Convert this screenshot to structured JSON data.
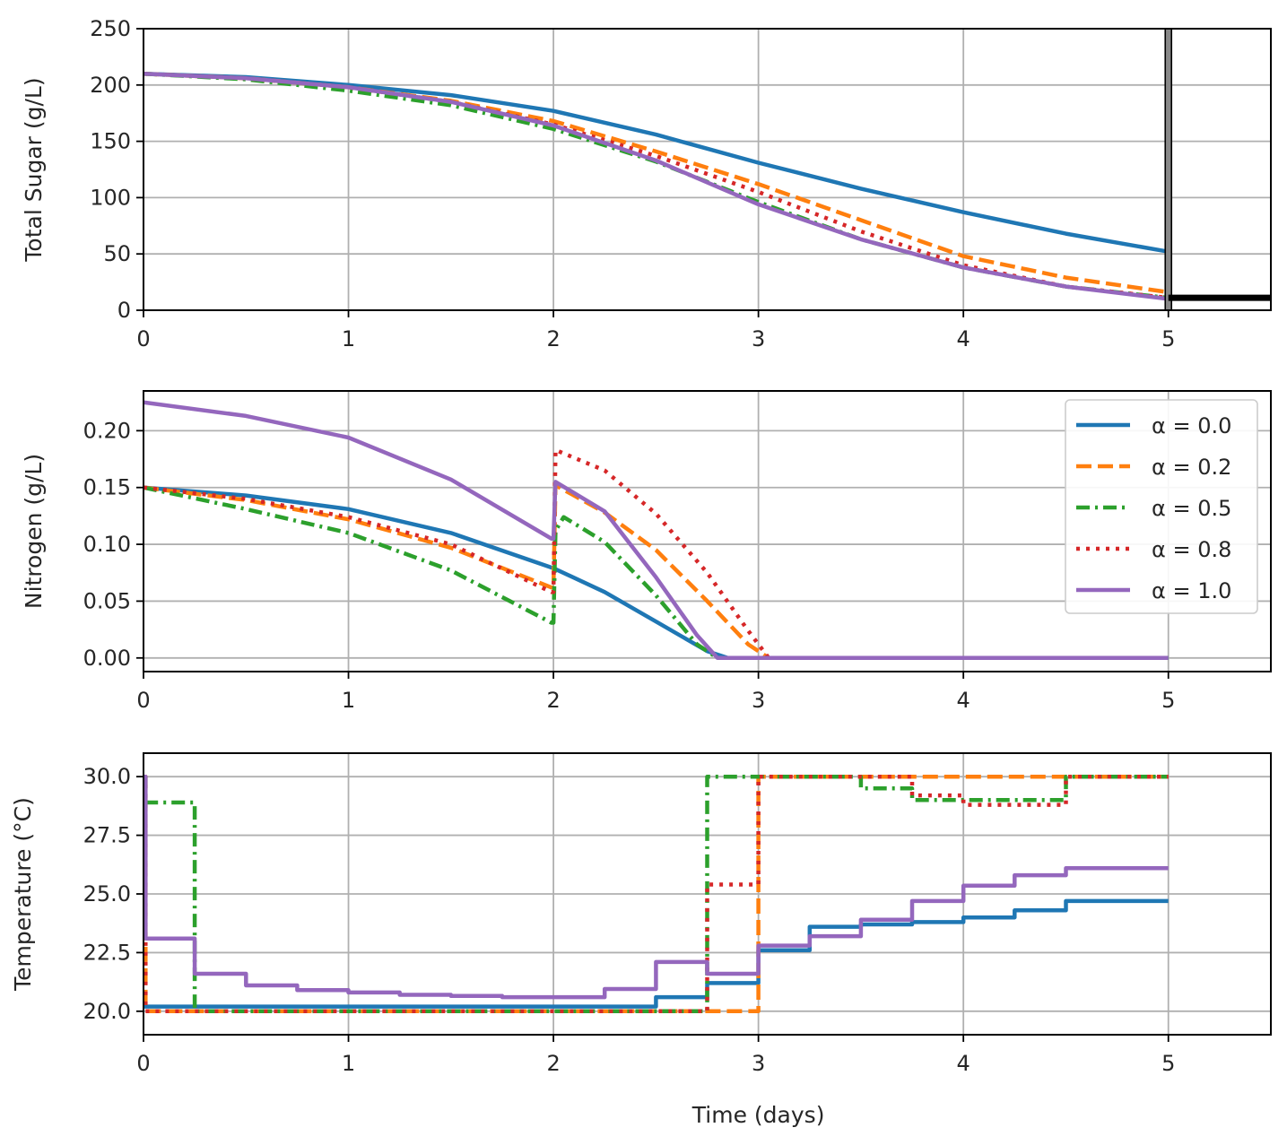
{
  "chart_data": [
    {
      "type": "line",
      "panel": "sugar",
      "title": "",
      "xlabel": "",
      "ylabel": "Total Sugar (g/L)",
      "xlim": [
        0,
        5.5
      ],
      "ylim": [
        0,
        250
      ],
      "xticks": [
        0,
        1,
        2,
        3,
        4,
        5
      ],
      "yticks": [
        0,
        50,
        100,
        150,
        200,
        250
      ],
      "xtick_labels": [
        "0",
        "1",
        "2",
        "3",
        "4",
        "5"
      ],
      "ytick_labels": [
        "0",
        "50",
        "100",
        "150",
        "200",
        "250"
      ],
      "grid": true,
      "series": [
        {
          "name": "α = 0.0",
          "x": [
            0,
            0.5,
            1,
            1.5,
            2,
            2.5,
            3,
            3.5,
            4,
            4.5,
            5
          ],
          "y": [
            210,
            207,
            200,
            191,
            177,
            156,
            131,
            108,
            87,
            68,
            52
          ]
        },
        {
          "name": "α = 0.2",
          "x": [
            0,
            0.5,
            1,
            1.5,
            2,
            2.5,
            3,
            3.5,
            4,
            4.5,
            5
          ],
          "y": [
            210,
            206,
            198,
            186,
            168,
            141,
            112,
            80,
            48,
            29,
            16
          ]
        },
        {
          "name": "α = 0.5",
          "x": [
            0,
            0.5,
            1,
            1.5,
            2,
            2.5,
            3,
            3.5,
            4,
            4.5,
            5
          ],
          "y": [
            210,
            205,
            195,
            182,
            161,
            132,
            96,
            63,
            38,
            21,
            11
          ]
        },
        {
          "name": "α = 0.8",
          "x": [
            0,
            0.5,
            1,
            1.5,
            2,
            2.5,
            3,
            3.5,
            4,
            4.5,
            5
          ],
          "y": [
            210,
            206,
            198,
            185,
            165,
            137,
            105,
            70,
            40,
            21,
            11
          ]
        },
        {
          "name": "α = 1.0",
          "x": [
            0,
            0.5,
            1,
            1.5,
            2,
            2.5,
            3,
            3.5,
            4,
            4.5,
            5
          ],
          "y": [
            210,
            206,
            198,
            185,
            164,
            133,
            94,
            63,
            38,
            21,
            10
          ]
        }
      ],
      "annotations": [
        {
          "kind": "vertical-bar",
          "x": 5.0,
          "y0": 0,
          "y1": 250
        },
        {
          "kind": "horizontal-line",
          "x0": 5.0,
          "x1": 5.5,
          "y": 11
        }
      ]
    },
    {
      "type": "line",
      "panel": "nitrogen",
      "title": "",
      "xlabel": "",
      "ylabel": "Nitrogen (g/L)",
      "xlim": [
        0,
        5.5
      ],
      "ylim": [
        -0.012,
        0.235
      ],
      "xticks": [
        0,
        1,
        2,
        3,
        4,
        5
      ],
      "yticks": [
        0,
        0.05,
        0.1,
        0.15,
        0.2
      ],
      "xtick_labels": [
        "0",
        "1",
        "2",
        "3",
        "4",
        "5"
      ],
      "ytick_labels": [
        "0.00",
        "0.05",
        "0.10",
        "0.15",
        "0.20"
      ],
      "grid": true,
      "legend_position": "top-right",
      "legend": [
        "α = 0.0",
        "α = 0.2",
        "α = 0.5",
        "α = 0.8",
        "α = 1.0"
      ],
      "series": [
        {
          "name": "α = 0.0",
          "x": [
            0,
            0.5,
            1,
            1.5,
            2,
            2.25,
            2.5,
            2.75,
            2.85,
            3,
            5
          ],
          "y": [
            0.15,
            0.143,
            0.131,
            0.11,
            0.079,
            0.058,
            0.032,
            0.006,
            0.0,
            0.0,
            0.0
          ]
        },
        {
          "name": "α = 0.2",
          "x": [
            0,
            0.5,
            1,
            1.5,
            1.99,
            2.0,
            2.01,
            2.25,
            2.5,
            2.75,
            2.95,
            3.05,
            5
          ],
          "y": [
            0.15,
            0.139,
            0.122,
            0.097,
            0.062,
            0.062,
            0.152,
            0.128,
            0.095,
            0.05,
            0.012,
            0.0,
            0.0
          ]
        },
        {
          "name": "α = 0.5",
          "x": [
            0,
            0.5,
            1,
            1.5,
            1.99,
            2.0,
            2.01,
            2.05,
            2.25,
            2.5,
            2.7,
            2.8,
            5
          ],
          "y": [
            0.15,
            0.131,
            0.11,
            0.077,
            0.031,
            0.031,
            0.112,
            0.124,
            0.102,
            0.055,
            0.012,
            0.0,
            0.0
          ]
        },
        {
          "name": "α = 0.8",
          "x": [
            0,
            0.5,
            1,
            1.5,
            1.99,
            2.0,
            2.01,
            2.25,
            2.5,
            2.75,
            2.95,
            3.05,
            5
          ],
          "y": [
            0.15,
            0.14,
            0.124,
            0.1,
            0.058,
            0.058,
            0.183,
            0.165,
            0.127,
            0.075,
            0.024,
            0.0,
            0.0
          ]
        },
        {
          "name": "α = 1.0",
          "x": [
            0,
            0.5,
            1,
            1.5,
            1.99,
            2.0,
            2.01,
            2.25,
            2.5,
            2.7,
            2.8,
            3,
            5
          ],
          "y": [
            0.225,
            0.213,
            0.194,
            0.157,
            0.105,
            0.105,
            0.155,
            0.129,
            0.071,
            0.02,
            0.0,
            0.0,
            0.0
          ]
        }
      ]
    },
    {
      "type": "line",
      "panel": "temperature",
      "title": "",
      "xlabel": "Time (days)",
      "ylabel": "Temperature (°C)",
      "xlim": [
        0,
        5.5
      ],
      "ylim": [
        19.0,
        31.0
      ],
      "xticks": [
        0,
        1,
        2,
        3,
        4,
        5
      ],
      "yticks": [
        20.0,
        22.5,
        25.0,
        27.5,
        30.0
      ],
      "xtick_labels": [
        "0",
        "1",
        "2",
        "3",
        "4",
        "5"
      ],
      "ytick_labels": [
        "20.0",
        "22.5",
        "25.0",
        "27.5",
        "30.0"
      ],
      "grid": true,
      "step": "post",
      "series": [
        {
          "name": "α = 0.0",
          "x": [
            0,
            0.25,
            0.5,
            0.75,
            1,
            1.25,
            1.5,
            1.75,
            2,
            2.25,
            2.5,
            2.75,
            3,
            3.25,
            3.5,
            3.75,
            4,
            4.25,
            4.5,
            5
          ],
          "y": [
            20.2,
            20.2,
            20.2,
            20.2,
            20.2,
            20.2,
            20.2,
            20.2,
            20.2,
            20.2,
            20.6,
            21.2,
            22.6,
            23.6,
            23.7,
            23.8,
            24.0,
            24.3,
            24.7,
            24.7
          ]
        },
        {
          "name": "α = 0.2",
          "x": [
            0,
            0.01,
            0.25,
            0.5,
            0.75,
            1,
            1.25,
            1.5,
            1.75,
            2,
            2.25,
            2.5,
            2.75,
            3,
            3.25,
            3.5,
            3.75,
            4,
            4.25,
            4.5,
            5
          ],
          "y": [
            30.0,
            20.0,
            20.0,
            20.0,
            20.0,
            20.0,
            20.0,
            20.0,
            20.0,
            20.0,
            20.0,
            20.0,
            20.0,
            30.0,
            30.0,
            30.0,
            30.0,
            30.0,
            30.0,
            30.0,
            30.0
          ]
        },
        {
          "name": "α = 0.5",
          "x": [
            0,
            0.01,
            0.25,
            0.5,
            0.75,
            1,
            1.25,
            1.5,
            1.75,
            2,
            2.25,
            2.5,
            2.75,
            3,
            3.25,
            3.5,
            3.75,
            4,
            4.25,
            4.5,
            5
          ],
          "y": [
            30.0,
            28.9,
            20.0,
            20.0,
            20.0,
            20.0,
            20.0,
            20.0,
            20.0,
            20.0,
            20.0,
            20.0,
            30.0,
            30.0,
            30.0,
            29.5,
            29.0,
            29.0,
            29.0,
            30.0,
            30.0
          ]
        },
        {
          "name": "α = 0.8",
          "x": [
            0,
            0.01,
            0.25,
            0.5,
            0.75,
            1,
            1.25,
            1.5,
            1.75,
            2,
            2.25,
            2.5,
            2.75,
            3,
            3.25,
            3.5,
            3.75,
            4,
            4.25,
            4.5,
            5
          ],
          "y": [
            30.0,
            20.0,
            20.0,
            20.0,
            20.0,
            20.0,
            20.0,
            20.0,
            20.0,
            20.0,
            20.0,
            20.0,
            25.4,
            30.0,
            30.0,
            30.0,
            29.2,
            28.8,
            28.8,
            30.0,
            30.0
          ]
        },
        {
          "name": "α = 1.0",
          "x": [
            0,
            0.01,
            0.25,
            0.5,
            0.75,
            1,
            1.25,
            1.5,
            1.75,
            2,
            2.25,
            2.5,
            2.75,
            3,
            3.25,
            3.5,
            3.75,
            4,
            4.25,
            4.5,
            5
          ],
          "y": [
            30.0,
            23.1,
            21.6,
            21.1,
            20.9,
            20.8,
            20.7,
            20.65,
            20.6,
            20.6,
            20.95,
            22.1,
            21.6,
            22.8,
            23.2,
            23.9,
            24.7,
            25.35,
            25.8,
            26.1,
            26.1
          ]
        }
      ]
    }
  ],
  "styles": [
    {
      "name": "α = 0.0",
      "color": "#1f77b4",
      "dash": "solid"
    },
    {
      "name": "α = 0.2",
      "color": "#ff7f0e",
      "dash": "dashed"
    },
    {
      "name": "α = 0.5",
      "color": "#2ca02c",
      "dash": "dashdot"
    },
    {
      "name": "α = 0.8",
      "color": "#d62728",
      "dash": "dotted"
    },
    {
      "name": "α = 1.0",
      "color": "#9467bd",
      "dash": "solid"
    }
  ]
}
